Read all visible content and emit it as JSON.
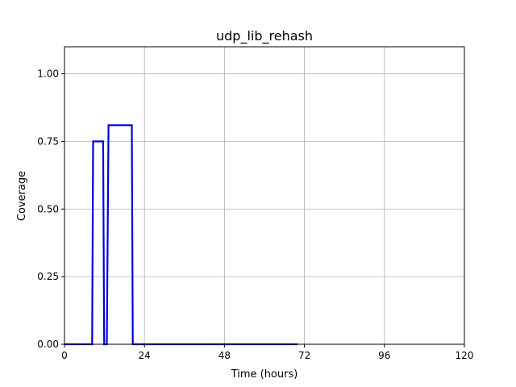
{
  "chart_data": {
    "type": "line",
    "title": "udp_lib_rehash",
    "xlabel": "Time (hours)",
    "ylabel": "Coverage",
    "xlim": [
      0,
      120
    ],
    "ylim": [
      0,
      1.1
    ],
    "xticks": [
      0,
      24,
      48,
      72,
      96,
      120
    ],
    "yticks": [
      0.0,
      0.25,
      0.5,
      0.75,
      1.0
    ],
    "xtick_labels": [
      "0",
      "24",
      "48",
      "72",
      "96",
      "120"
    ],
    "ytick_labels": [
      "0.00",
      "0.25",
      "0.50",
      "0.75",
      "1.00"
    ],
    "grid": true,
    "series": [
      {
        "color": "#0000e0",
        "x": [
          0,
          8.3,
          8.6,
          11.6,
          11.9,
          12.7,
          13.2,
          13.5,
          20.2,
          20.5,
          70
        ],
        "y": [
          0,
          0,
          0.75,
          0.75,
          0,
          0,
          0.81,
          0.81,
          0.81,
          0,
          0
        ]
      }
    ]
  }
}
